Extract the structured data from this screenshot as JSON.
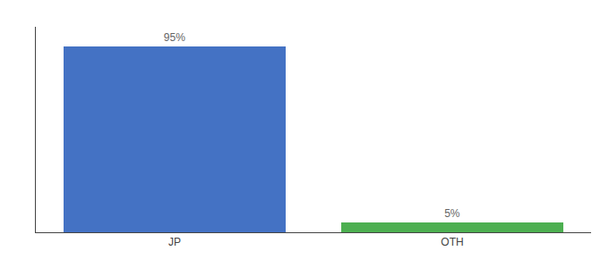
{
  "chart_data": {
    "type": "bar",
    "categories": [
      "JP",
      "OTH"
    ],
    "values": [
      95,
      5
    ],
    "value_labels": [
      "95%",
      "5%"
    ],
    "colors": [
      "#4472c4",
      "#4caf50"
    ],
    "ylim": [
      0,
      105
    ],
    "yticks": [],
    "data_labels": true,
    "tick_labels": "x",
    "grid": false
  }
}
